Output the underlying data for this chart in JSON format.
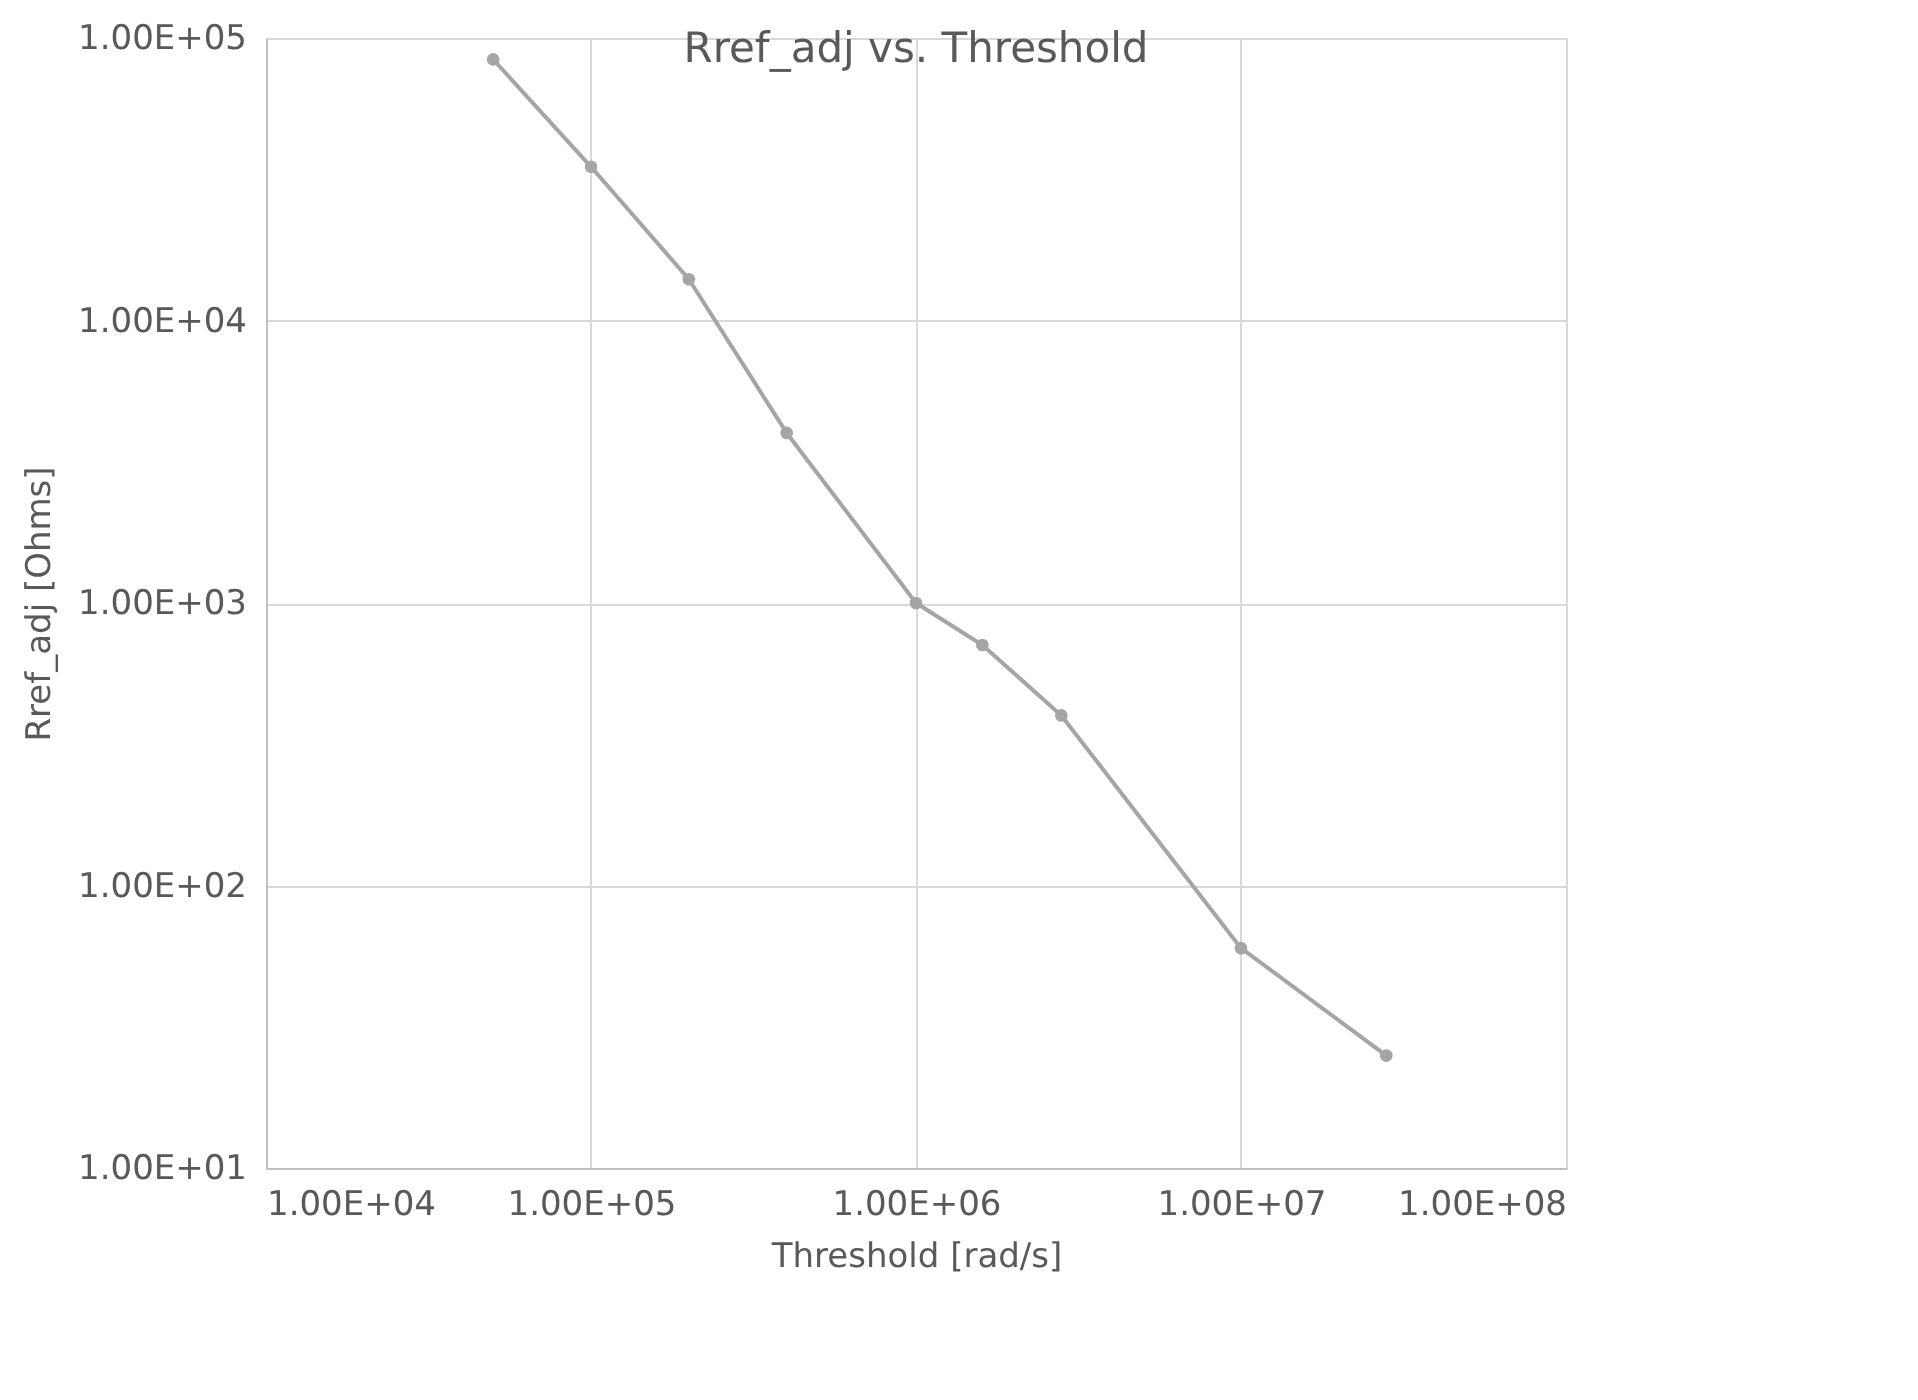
{
  "chart_data": {
    "type": "line",
    "title": "Rref_adj vs. Threshold",
    "xlabel": "Threshold [rad/s]",
    "ylabel": "Rref_adj [Ohms]",
    "x": [
      50000,
      100000,
      200000,
      400000,
      1000000,
      1600000,
      2800000,
      10000000,
      28000000
    ],
    "series": [
      {
        "color": "#a5a5a5",
        "values": [
          84000,
          35000,
          14000,
          4000,
          1000,
          710,
          400,
          60,
          25
        ]
      }
    ],
    "log": "xy",
    "xlim": [
      10000,
      100000000
    ],
    "ylim": [
      10,
      100000
    ],
    "xticks": [
      {
        "value": 10000,
        "label": "1.00E+04"
      },
      {
        "value": 100000,
        "label": "1.00E+05"
      },
      {
        "value": 1000000,
        "label": "1.00E+06"
      },
      {
        "value": 10000000,
        "label": "1.00E+07"
      },
      {
        "value": 100000000,
        "label": "1.00E+08"
      }
    ],
    "yticks": [
      {
        "value": 10,
        "label": "1.00E+01"
      },
      {
        "value": 100,
        "label": "1.00E+02"
      },
      {
        "value": 1000,
        "label": "1.00E+03"
      },
      {
        "value": 10000,
        "label": "1.00E+04"
      },
      {
        "value": 100000,
        "label": "1.00E+05"
      }
    ],
    "grid": true,
    "marker": "circle",
    "line_style": "solid"
  }
}
